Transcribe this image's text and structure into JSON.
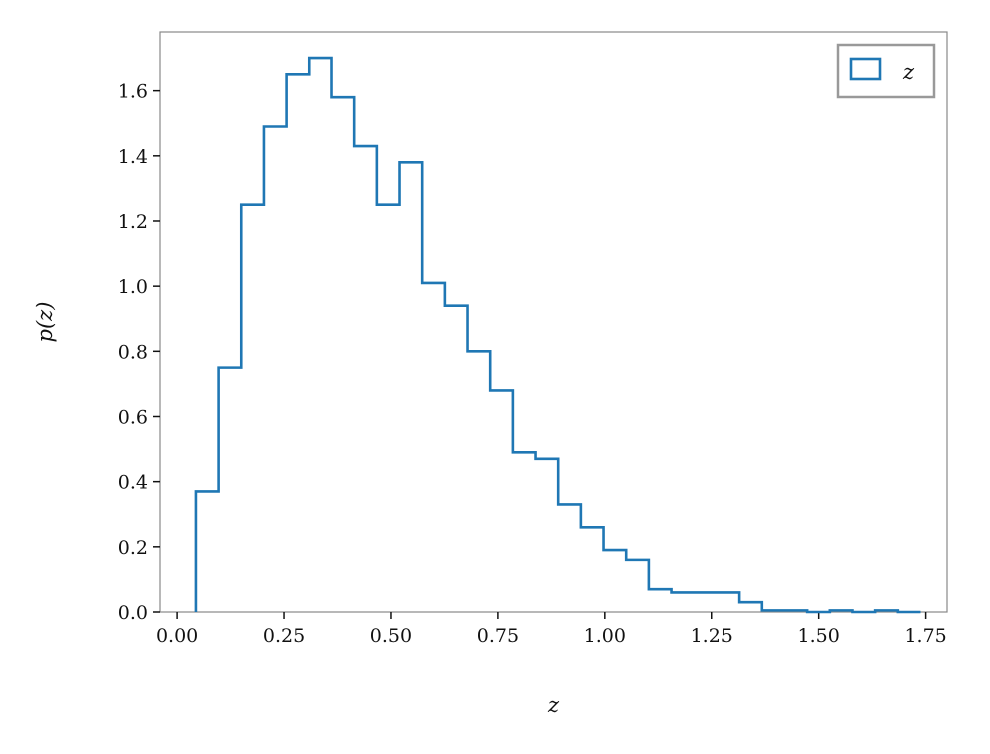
{
  "chart_data": {
    "type": "histogram",
    "title": "",
    "xlabel": "z",
    "ylabel": "p(z)",
    "xlim": [
      -0.04,
      1.8
    ],
    "ylim": [
      0.0,
      1.78
    ],
    "xticks": [
      0.0,
      0.25,
      0.5,
      0.75,
      1.0,
      1.25,
      1.5,
      1.75
    ],
    "xtick_labels": [
      "0.00",
      "0.25",
      "0.50",
      "0.75",
      "1.00",
      "1.25",
      "1.50",
      "1.75"
    ],
    "yticks": [
      0.0,
      0.2,
      0.4,
      0.6,
      0.8,
      1.0,
      1.2,
      1.4,
      1.6
    ],
    "ytick_labels": [
      "0.0",
      "0.2",
      "0.4",
      "0.6",
      "0.8",
      "1.0",
      "1.2",
      "1.4",
      "1.6"
    ],
    "grid": false,
    "legend": {
      "position": "top-right",
      "entries": [
        "z"
      ]
    },
    "series": [
      {
        "name": "z",
        "color": "#1f77b4",
        "histtype": "step",
        "bin_edges": [
          0.044,
          0.097,
          0.15,
          0.203,
          0.256,
          0.309,
          0.361,
          0.414,
          0.467,
          0.52,
          0.573,
          0.626,
          0.679,
          0.732,
          0.785,
          0.838,
          0.891,
          0.944,
          0.997,
          1.05,
          1.103,
          1.156,
          1.209,
          1.262,
          1.314,
          1.367,
          1.42,
          1.473,
          1.526,
          1.579,
          1.632,
          1.685,
          1.738
        ],
        "values": [
          0.37,
          0.75,
          1.25,
          1.49,
          1.65,
          1.7,
          1.58,
          1.43,
          1.25,
          1.38,
          1.01,
          0.94,
          0.8,
          0.68,
          0.49,
          0.47,
          0.33,
          0.26,
          0.19,
          0.16,
          0.07,
          0.06,
          0.06,
          0.06,
          0.03,
          0.005,
          0.005,
          0.0,
          0.005,
          0.0,
          0.005,
          0.0
        ]
      }
    ]
  }
}
